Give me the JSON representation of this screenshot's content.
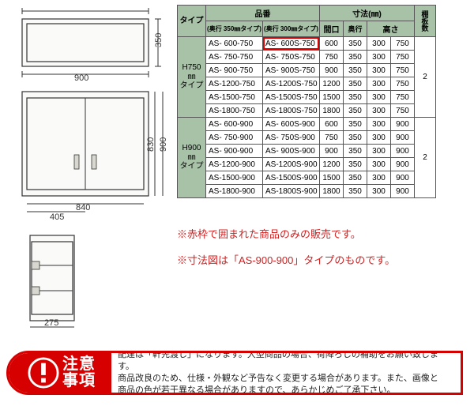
{
  "drawings": {
    "top_w": "900",
    "top_d": "350",
    "front_h": "830",
    "front_h2": "900",
    "front_inw": "840",
    "front_in_half": "405",
    "bottom_w": "275"
  },
  "table": {
    "header_type": "タイプ",
    "header_hinban": "品番",
    "header_hinban_350": "(奥行 350㎜タイプ)",
    "header_hinban_300": "(奥行 300㎜タイプ)",
    "header_sunpo": "寸法(㎜)",
    "header_kaiko": "間口",
    "header_okuyu": "奥行",
    "header_takasa": "高さ",
    "header_shelf": "棚板数",
    "group1_label": "H750\n㎜\nタイプ",
    "group2_label": "H900\n㎜\nタイプ",
    "group1": [
      {
        "a": "AS-  600-750",
        "b": "AS-  600S-750",
        "c": "600",
        "d": "350",
        "e": "300",
        "f": "750",
        "hl": true
      },
      {
        "a": "AS-  750-750",
        "b": "AS-  750S-750",
        "c": "750",
        "d": "350",
        "e": "300",
        "f": "750"
      },
      {
        "a": "AS-  900-750",
        "b": "AS-  900S-750",
        "c": "900",
        "d": "350",
        "e": "300",
        "f": "750"
      },
      {
        "a": "AS-1200-750",
        "b": "AS-1200S-750",
        "c": "1200",
        "d": "350",
        "e": "300",
        "f": "750"
      },
      {
        "a": "AS-1500-750",
        "b": "AS-1500S-750",
        "c": "1500",
        "d": "350",
        "e": "300",
        "f": "750"
      },
      {
        "a": "AS-1800-750",
        "b": "AS-1800S-750",
        "c": "1800",
        "d": "350",
        "e": "300",
        "f": "750"
      }
    ],
    "group2": [
      {
        "a": "AS-  600-900",
        "b": "AS-  600S-900",
        "c": "600",
        "d": "350",
        "e": "300",
        "f": "900"
      },
      {
        "a": "AS-  750-900",
        "b": "AS-  750S-900",
        "c": "750",
        "d": "350",
        "e": "300",
        "f": "900"
      },
      {
        "a": "AS-  900-900",
        "b": "AS-  900S-900",
        "c": "900",
        "d": "350",
        "e": "300",
        "f": "900"
      },
      {
        "a": "AS-1200-900",
        "b": "AS-1200S-900",
        "c": "1200",
        "d": "350",
        "e": "300",
        "f": "900"
      },
      {
        "a": "AS-1500-900",
        "b": "AS-1500S-900",
        "c": "1500",
        "d": "350",
        "e": "300",
        "f": "900"
      },
      {
        "a": "AS-1800-900",
        "b": "AS-1800S-900",
        "c": "1800",
        "d": "350",
        "e": "300",
        "f": "900"
      }
    ],
    "shelf_both": "2"
  },
  "notes": {
    "n1": "※赤枠で囲まれた商品のみの販売です。",
    "n2": "※寸法図は「AS-900-900」タイプのものです。"
  },
  "warning": {
    "badge": "注意\n事項",
    "line1": "配達は「軒先渡し」になります。大型商品の場合、荷降ろしの補助をお願い致します。",
    "line2": "商品改良のため、仕様・外観など予告なく変更する場合があります。また、画像と",
    "line3": "商品の色が若干異なる場合がありますので、あらかじめご了承下さい。"
  }
}
